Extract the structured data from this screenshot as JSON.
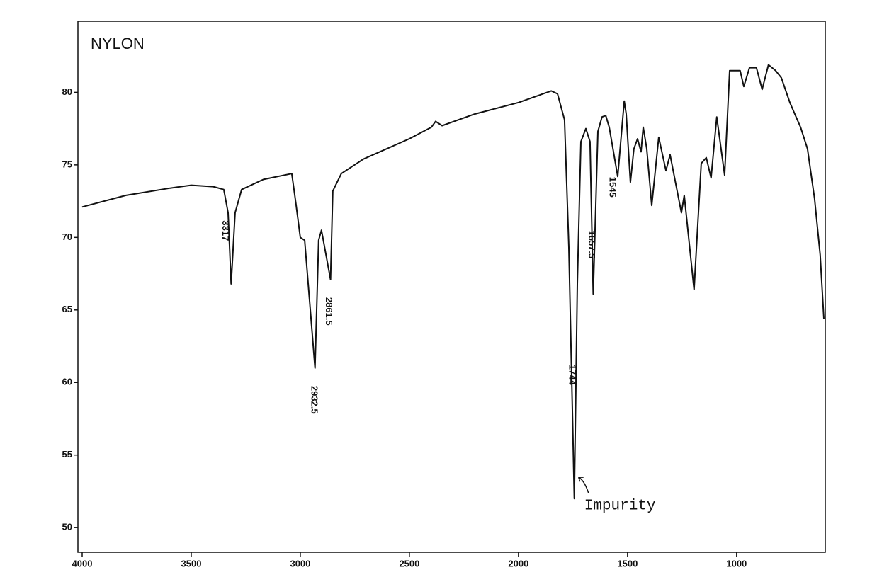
{
  "chart_data": {
    "type": "line",
    "title": "NYLON",
    "x": [
      4000,
      3799,
      3597,
      3500,
      3399,
      3351,
      3331,
      3317,
      3299,
      3269,
      3169,
      3039,
      3019,
      3000,
      2980,
      2932.5,
      2916,
      2903,
      2861.5,
      2851,
      2812,
      2711,
      2500,
      2399,
      2380,
      2350,
      2201,
      2000,
      1850,
      1821,
      1789,
      1769,
      1744,
      1730,
      1714,
      1691,
      1672,
      1657.5,
      1636,
      1617,
      1600,
      1584,
      1545,
      1515,
      1506,
      1487,
      1471,
      1454,
      1438,
      1428,
      1412,
      1389,
      1357,
      1324,
      1305,
      1253,
      1240,
      1195,
      1162,
      1139,
      1117,
      1091,
      1055,
      1032,
      984,
      967,
      941,
      909,
      883,
      854,
      821,
      795,
      756,
      733,
      707,
      675,
      643,
      617,
      600
    ],
    "series": [
      {
        "color": "#111111",
        "values": [
          72.1,
          72.9,
          73.4,
          73.6,
          73.5,
          73.3,
          71.7,
          66.8,
          71.7,
          73.3,
          74.0,
          74.4,
          72.2,
          70.0,
          69.8,
          61.0,
          69.8,
          70.5,
          67.1,
          73.2,
          74.4,
          75.4,
          76.8,
          77.6,
          78.0,
          77.7,
          78.5,
          79.3,
          80.1,
          79.9,
          78.1,
          69.3,
          52.0,
          66.8,
          76.6,
          77.5,
          76.6,
          66.1,
          77.3,
          78.3,
          78.4,
          77.6,
          74.2,
          79.4,
          78.5,
          73.8,
          76.1,
          76.8,
          75.9,
          77.6,
          76.1,
          72.2,
          76.9,
          74.6,
          75.7,
          71.7,
          72.9,
          66.4,
          75.1,
          75.5,
          74.1,
          78.3,
          74.3,
          81.5,
          81.5,
          80.4,
          81.7,
          81.7,
          80.2,
          81.9,
          81.5,
          81.0,
          79.3,
          78.5,
          77.6,
          76.1,
          72.7,
          68.8,
          64.4
        ]
      }
    ],
    "xlim": [
      4000,
      600
    ],
    "xticks": [
      4000,
      3500,
      3000,
      2500,
      2000,
      1500,
      1000
    ],
    "ylim": [
      48.3,
      84.9
    ],
    "yticks": [
      50,
      55,
      60,
      65,
      70,
      75,
      80
    ],
    "peak_labels": [
      "3317",
      "2932.5",
      "2861.5",
      "1744",
      "1657.5",
      "1545"
    ],
    "annotation": "Impurity"
  }
}
